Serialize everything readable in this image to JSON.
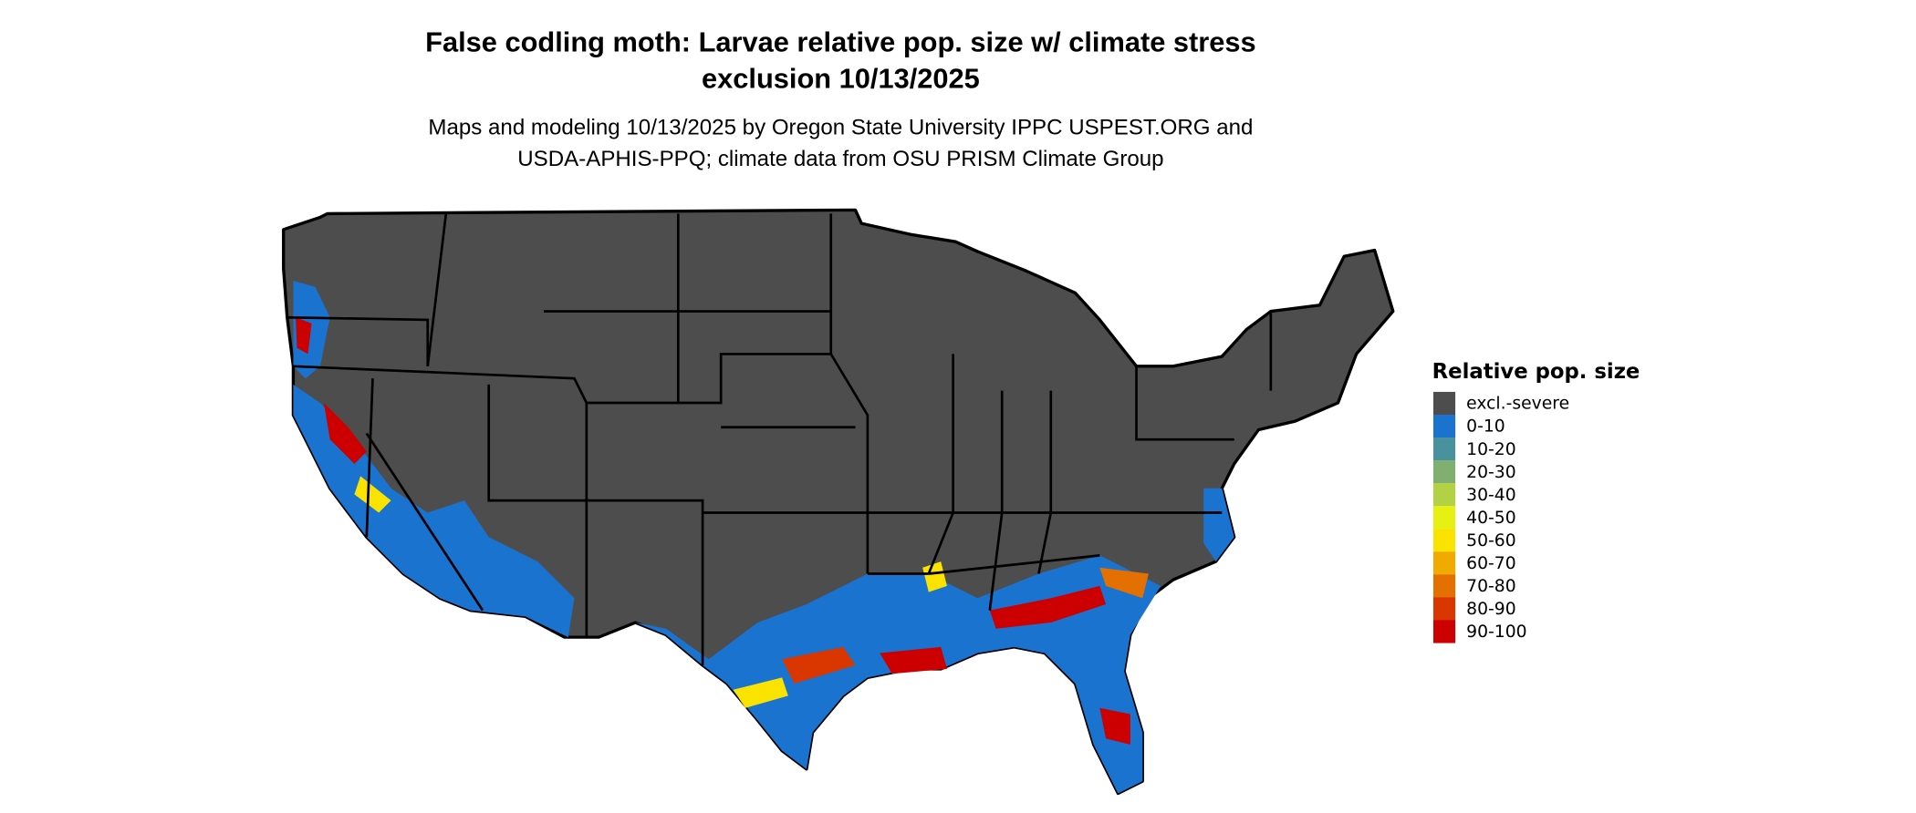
{
  "title": {
    "line1": "False codling moth: Larvae relative pop. size w/ climate stress",
    "line2": "exclusion 10/13/2025"
  },
  "subtitle": {
    "line1": "Maps and modeling 10/13/2025 by Oregon State University IPPC USPEST.ORG and",
    "line2": "USDA-APHIS-PPQ; climate data from OSU PRISM Climate Group"
  },
  "legend": {
    "title": "Relative pop. size",
    "placement": "right",
    "items": [
      {
        "label": "excl.-severe",
        "color": "#4d4d4d"
      },
      {
        "label": "0-10",
        "color": "#1a73cf"
      },
      {
        "label": "10-20",
        "color": "#4a919e"
      },
      {
        "label": "20-30",
        "color": "#7fb06f"
      },
      {
        "label": "30-40",
        "color": "#b3d144"
      },
      {
        "label": "40-50",
        "color": "#e6f013"
      },
      {
        "label": "50-60",
        "color": "#fae300"
      },
      {
        "label": "60-70",
        "color": "#f0aa00"
      },
      {
        "label": "70-80",
        "color": "#e37000"
      },
      {
        "label": "80-90",
        "color": "#d93600"
      },
      {
        "label": "90-100",
        "color": "#cc0000"
      }
    ]
  }
}
